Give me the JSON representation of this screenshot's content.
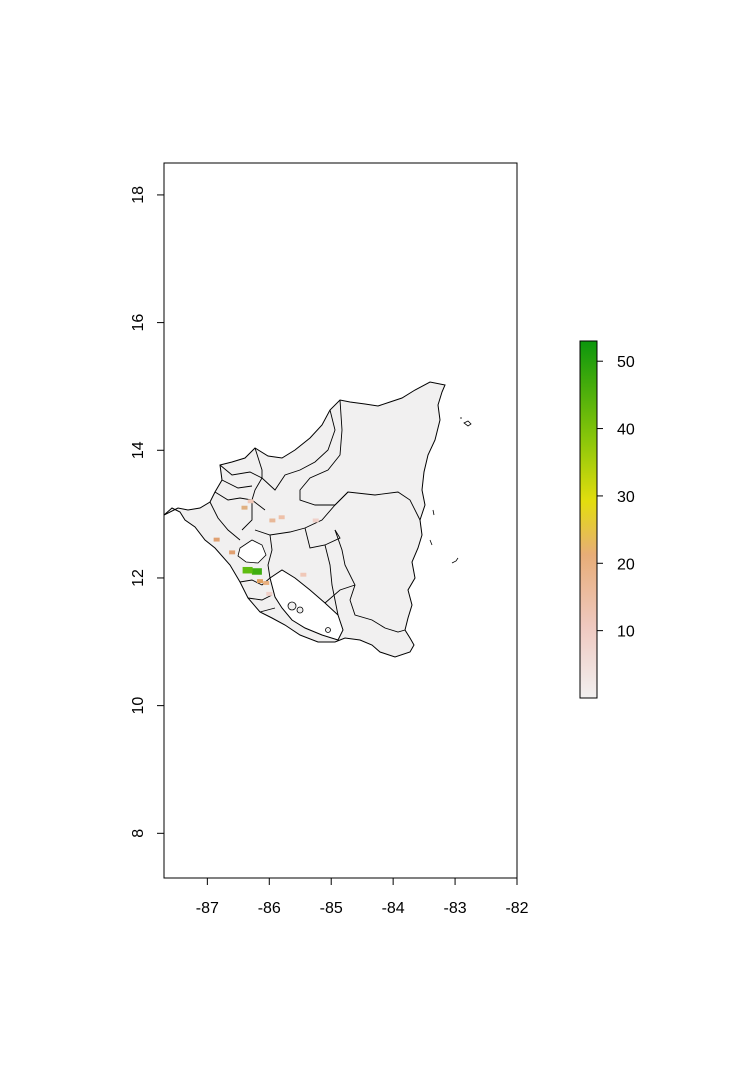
{
  "map": {
    "x_axis": {
      "ticks": [
        -87,
        -86,
        -85,
        -84,
        -83,
        -82
      ],
      "range": [
        -87.7,
        -82.0
      ]
    },
    "y_axis": {
      "ticks": [
        8,
        10,
        12,
        14,
        16,
        18
      ],
      "range": [
        7.3,
        18.5
      ]
    },
    "region_fill": "#f1f0f0",
    "lake_fill": "#ffffff",
    "hotspots": [
      {
        "lon": -86.2,
        "lat": 12.1,
        "value": 50,
        "color": "#3fae10"
      },
      {
        "lon": -86.35,
        "lat": 12.12,
        "value": 40,
        "color": "#5fbd10"
      },
      {
        "lon": -86.15,
        "lat": 11.95,
        "value": 18,
        "color": "#e0a060"
      },
      {
        "lon": -86.05,
        "lat": 11.92,
        "value": 15,
        "color": "#e8b080"
      },
      {
        "lon": -86.6,
        "lat": 12.4,
        "value": 15,
        "color": "#e0a070"
      },
      {
        "lon": -86.85,
        "lat": 12.6,
        "value": 15,
        "color": "#e0a070"
      },
      {
        "lon": -86.4,
        "lat": 13.1,
        "value": 14,
        "color": "#e0b080"
      },
      {
        "lon": -85.95,
        "lat": 12.9,
        "value": 12,
        "color": "#e8b898"
      },
      {
        "lon": -85.8,
        "lat": 12.95,
        "value": 10,
        "color": "#eec0a8"
      },
      {
        "lon": -85.45,
        "lat": 12.05,
        "value": 8,
        "color": "#f0c8b8"
      },
      {
        "lon": -85.25,
        "lat": 12.9,
        "value": 6,
        "color": "#f0d0c8"
      },
      {
        "lon": -86.3,
        "lat": 13.2,
        "value": 8,
        "color": "#f0c8b8"
      },
      {
        "lon": -86.0,
        "lat": 11.75,
        "value": 6,
        "color": "#f0d0c8"
      }
    ]
  },
  "legend": {
    "ticks": [
      10,
      20,
      30,
      40,
      50
    ],
    "range": [
      0,
      53
    ],
    "colors": [
      "#f1f1f1",
      "#efcfc8",
      "#e9ac7a",
      "#e2e00f",
      "#7bc50a",
      "#0d9a0d"
    ]
  }
}
